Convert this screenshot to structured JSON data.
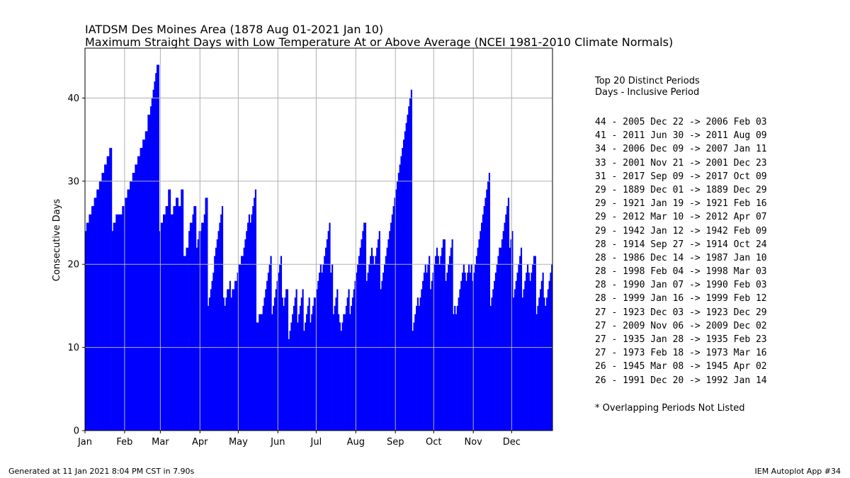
{
  "title_line1": "IATDSM Des Moines Area (1878 Aug 01-2021 Jan 10)",
  "title_line2": "Maximum Straight Days with Low Temperature At or Above Average (NCEI 1981-2010 Climate Normals)",
  "panel": {
    "heading1": "Top 20 Distinct Periods",
    "heading2": "Days - Inclusive Period",
    "periods": [
      "44 - 2005 Dec 22 -> 2006 Feb 03",
      "41 - 2011 Jun 30 -> 2011 Aug 09",
      "34 - 2006 Dec 09 -> 2007 Jan 11",
      "33 - 2001 Nov 21 -> 2001 Dec 23",
      "31 - 2017 Sep 09 -> 2017 Oct 09",
      "29 - 1889 Dec 01 -> 1889 Dec 29",
      "29 - 1921 Jan 19 -> 1921 Feb 16",
      "29 - 2012 Mar 10 -> 2012 Apr 07",
      "29 - 1942 Jan 12 -> 1942 Feb 09",
      "28 - 1914 Sep 27 -> 1914 Oct 24",
      "28 - 1986 Dec 14 -> 1987 Jan 10",
      "28 - 1998 Feb 04 -> 1998 Mar 03",
      "28 - 1990 Jan 07 -> 1990 Feb 03",
      "28 - 1999 Jan 16 -> 1999 Feb 12",
      "27 - 1923 Dec 03 -> 1923 Dec 29",
      "27 - 2009 Nov 06 -> 2009 Dec 02",
      "27 - 1935 Jan 28 -> 1935 Feb 23",
      "27 - 1973 Feb 18 -> 1973 Mar 16",
      "26 - 1945 Mar 08 -> 1945 Apr 02",
      "26 - 1991 Dec 20 -> 1992 Jan 14"
    ],
    "note": "* Overlapping Periods Not Listed"
  },
  "footer_left": "Generated at 11 Jan 2021 8:04 PM CST in 7.90s",
  "footer_right": "IEM Autoplot App #34",
  "chart_data": {
    "type": "bar",
    "ylabel": "Consecutive Days",
    "xlabel": "",
    "ylim": [
      0,
      46
    ],
    "xlim": [
      1,
      366
    ],
    "yticks": [
      0,
      10,
      20,
      30,
      40
    ],
    "grid": true,
    "bar_color": "#0000ff",
    "x_tick_labels": [
      "Jan",
      "Feb",
      "Mar",
      "Apr",
      "May",
      "Jun",
      "Jul",
      "Aug",
      "Sep",
      "Oct",
      "Nov",
      "Dec"
    ],
    "month_start_doy": [
      1,
      32,
      60,
      91,
      121,
      152,
      182,
      213,
      244,
      274,
      305,
      335
    ],
    "series_keypoints": [
      [
        1,
        24
      ],
      [
        2,
        25
      ],
      [
        4,
        26
      ],
      [
        6,
        27
      ],
      [
        8,
        28
      ],
      [
        10,
        29
      ],
      [
        12,
        30
      ],
      [
        14,
        31
      ],
      [
        16,
        32
      ],
      [
        18,
        33
      ],
      [
        20,
        34
      ],
      [
        21,
        34
      ],
      [
        22,
        24
      ],
      [
        23,
        25
      ],
      [
        24,
        25
      ],
      [
        25,
        26
      ],
      [
        26,
        26
      ],
      [
        28,
        26
      ],
      [
        30,
        27
      ],
      [
        32,
        28
      ],
      [
        34,
        29
      ],
      [
        36,
        30
      ],
      [
        38,
        31
      ],
      [
        40,
        32
      ],
      [
        42,
        33
      ],
      [
        44,
        34
      ],
      [
        46,
        35
      ],
      [
        48,
        36
      ],
      [
        50,
        38
      ],
      [
        52,
        39
      ],
      [
        53,
        40
      ],
      [
        54,
        41
      ],
      [
        55,
        42
      ],
      [
        56,
        43
      ],
      [
        57,
        44
      ],
      [
        58,
        44
      ],
      [
        59,
        24
      ],
      [
        60,
        25
      ],
      [
        62,
        26
      ],
      [
        64,
        27
      ],
      [
        66,
        29
      ],
      [
        67,
        29
      ],
      [
        68,
        26
      ],
      [
        70,
        27
      ],
      [
        72,
        28
      ],
      [
        74,
        27
      ],
      [
        76,
        29
      ],
      [
        77,
        29
      ],
      [
        78,
        21
      ],
      [
        80,
        22
      ],
      [
        82,
        24
      ],
      [
        83,
        25
      ],
      [
        85,
        26
      ],
      [
        86,
        27
      ],
      [
        87,
        27
      ],
      [
        88,
        22
      ],
      [
        89,
        23
      ],
      [
        90,
        24
      ],
      [
        92,
        25
      ],
      [
        94,
        26
      ],
      [
        95,
        28
      ],
      [
        96,
        28
      ],
      [
        97,
        15
      ],
      [
        98,
        16
      ],
      [
        99,
        17
      ],
      [
        100,
        18
      ],
      [
        101,
        19
      ],
      [
        102,
        21
      ],
      [
        103,
        22
      ],
      [
        104,
        23
      ],
      [
        105,
        24
      ],
      [
        106,
        25
      ],
      [
        107,
        26
      ],
      [
        108,
        27
      ],
      [
        109,
        16
      ],
      [
        110,
        15
      ],
      [
        111,
        16
      ],
      [
        112,
        17
      ],
      [
        114,
        18
      ],
      [
        115,
        16
      ],
      [
        116,
        17
      ],
      [
        118,
        18
      ],
      [
        120,
        19
      ],
      [
        121,
        20
      ],
      [
        123,
        21
      ],
      [
        125,
        22
      ],
      [
        126,
        23
      ],
      [
        127,
        24
      ],
      [
        128,
        25
      ],
      [
        129,
        26
      ],
      [
        130,
        25
      ],
      [
        131,
        26
      ],
      [
        132,
        27
      ],
      [
        133,
        28
      ],
      [
        134,
        29
      ],
      [
        135,
        13
      ],
      [
        136,
        13
      ],
      [
        137,
        14
      ],
      [
        139,
        14
      ],
      [
        140,
        15
      ],
      [
        141,
        16
      ],
      [
        142,
        17
      ],
      [
        143,
        18
      ],
      [
        144,
        19
      ],
      [
        145,
        20
      ],
      [
        146,
        21
      ],
      [
        147,
        14
      ],
      [
        148,
        15
      ],
      [
        149,
        16
      ],
      [
        150,
        17
      ],
      [
        151,
        18
      ],
      [
        152,
        19
      ],
      [
        153,
        20
      ],
      [
        154,
        21
      ],
      [
        155,
        16
      ],
      [
        156,
        15
      ],
      [
        157,
        16
      ],
      [
        158,
        17
      ],
      [
        159,
        17
      ],
      [
        160,
        11
      ],
      [
        161,
        12
      ],
      [
        162,
        13
      ],
      [
        163,
        14
      ],
      [
        164,
        15
      ],
      [
        165,
        16
      ],
      [
        166,
        17
      ],
      [
        167,
        13
      ],
      [
        168,
        14
      ],
      [
        169,
        15
      ],
      [
        170,
        16
      ],
      [
        171,
        17
      ],
      [
        172,
        12
      ],
      [
        173,
        13
      ],
      [
        174,
        14
      ],
      [
        175,
        15
      ],
      [
        176,
        16
      ],
      [
        177,
        13
      ],
      [
        178,
        14
      ],
      [
        179,
        15
      ],
      [
        180,
        16
      ],
      [
        181,
        16
      ],
      [
        182,
        17
      ],
      [
        183,
        18
      ],
      [
        184,
        19
      ],
      [
        185,
        20
      ],
      [
        186,
        19
      ],
      [
        187,
        20
      ],
      [
        188,
        21
      ],
      [
        189,
        22
      ],
      [
        190,
        23
      ],
      [
        191,
        24
      ],
      [
        192,
        25
      ],
      [
        193,
        19
      ],
      [
        194,
        20
      ],
      [
        195,
        14
      ],
      [
        196,
        15
      ],
      [
        197,
        16
      ],
      [
        198,
        17
      ],
      [
        199,
        14
      ],
      [
        200,
        13
      ],
      [
        201,
        12
      ],
      [
        202,
        13
      ],
      [
        203,
        14
      ],
      [
        204,
        14
      ],
      [
        205,
        15
      ],
      [
        206,
        16
      ],
      [
        207,
        17
      ],
      [
        208,
        14
      ],
      [
        209,
        15
      ],
      [
        210,
        16
      ],
      [
        211,
        17
      ],
      [
        212,
        18
      ],
      [
        213,
        19
      ],
      [
        214,
        20
      ],
      [
        215,
        21
      ],
      [
        216,
        22
      ],
      [
        217,
        23
      ],
      [
        218,
        24
      ],
      [
        219,
        25
      ],
      [
        220,
        25
      ],
      [
        221,
        18
      ],
      [
        222,
        19
      ],
      [
        223,
        20
      ],
      [
        224,
        21
      ],
      [
        225,
        22
      ],
      [
        226,
        21
      ],
      [
        227,
        20
      ],
      [
        228,
        21
      ],
      [
        229,
        22
      ],
      [
        230,
        23
      ],
      [
        231,
        24
      ],
      [
        232,
        17
      ],
      [
        233,
        18
      ],
      [
        234,
        19
      ],
      [
        235,
        20
      ],
      [
        236,
        21
      ],
      [
        237,
        22
      ],
      [
        238,
        23
      ],
      [
        239,
        24
      ],
      [
        240,
        25
      ],
      [
        241,
        26
      ],
      [
        242,
        27
      ],
      [
        243,
        28
      ],
      [
        244,
        29
      ],
      [
        245,
        30
      ],
      [
        246,
        31
      ],
      [
        247,
        32
      ],
      [
        248,
        33
      ],
      [
        249,
        34
      ],
      [
        250,
        35
      ],
      [
        251,
        36
      ],
      [
        252,
        37
      ],
      [
        253,
        38
      ],
      [
        254,
        39
      ],
      [
        255,
        40
      ],
      [
        256,
        41
      ],
      [
        257,
        12
      ],
      [
        258,
        13
      ],
      [
        259,
        14
      ],
      [
        260,
        15
      ],
      [
        261,
        16
      ],
      [
        262,
        15
      ],
      [
        263,
        16
      ],
      [
        264,
        17
      ],
      [
        265,
        18
      ],
      [
        266,
        19
      ],
      [
        267,
        20
      ],
      [
        268,
        19
      ],
      [
        269,
        20
      ],
      [
        270,
        21
      ],
      [
        271,
        17
      ],
      [
        272,
        18
      ],
      [
        273,
        19
      ],
      [
        274,
        20
      ],
      [
        275,
        21
      ],
      [
        276,
        22
      ],
      [
        277,
        21
      ],
      [
        278,
        20
      ],
      [
        279,
        21
      ],
      [
        280,
        22
      ],
      [
        281,
        23
      ],
      [
        282,
        23
      ],
      [
        283,
        18
      ],
      [
        284,
        19
      ],
      [
        285,
        20
      ],
      [
        286,
        21
      ],
      [
        287,
        22
      ],
      [
        288,
        23
      ],
      [
        289,
        14
      ],
      [
        290,
        15
      ],
      [
        291,
        14
      ],
      [
        292,
        15
      ],
      [
        293,
        16
      ],
      [
        294,
        17
      ],
      [
        295,
        18
      ],
      [
        296,
        19
      ],
      [
        297,
        20
      ],
      [
        298,
        19
      ],
      [
        299,
        18
      ],
      [
        300,
        19
      ],
      [
        301,
        20
      ],
      [
        302,
        19
      ],
      [
        303,
        20
      ],
      [
        304,
        18
      ],
      [
        305,
        19
      ],
      [
        306,
        20
      ],
      [
        307,
        21
      ],
      [
        308,
        22
      ],
      [
        309,
        23
      ],
      [
        310,
        24
      ],
      [
        311,
        25
      ],
      [
        312,
        26
      ],
      [
        313,
        27
      ],
      [
        314,
        28
      ],
      [
        315,
        29
      ],
      [
        316,
        30
      ],
      [
        317,
        31
      ],
      [
        318,
        15
      ],
      [
        319,
        16
      ],
      [
        320,
        17
      ],
      [
        321,
        18
      ],
      [
        322,
        19
      ],
      [
        323,
        20
      ],
      [
        324,
        21
      ],
      [
        325,
        22
      ],
      [
        326,
        22
      ],
      [
        327,
        23
      ],
      [
        328,
        24
      ],
      [
        329,
        25
      ],
      [
        330,
        26
      ],
      [
        331,
        27
      ],
      [
        332,
        28
      ],
      [
        333,
        22
      ],
      [
        334,
        23
      ],
      [
        335,
        24
      ],
      [
        336,
        16
      ],
      [
        337,
        17
      ],
      [
        338,
        18
      ],
      [
        339,
        19
      ],
      [
        340,
        20
      ],
      [
        341,
        21
      ],
      [
        342,
        22
      ],
      [
        343,
        16
      ],
      [
        344,
        17
      ],
      [
        345,
        18
      ],
      [
        346,
        19
      ],
      [
        347,
        20
      ],
      [
        348,
        19
      ],
      [
        349,
        18
      ],
      [
        350,
        19
      ],
      [
        351,
        20
      ],
      [
        352,
        21
      ],
      [
        353,
        21
      ],
      [
        354,
        14
      ],
      [
        355,
        15
      ],
      [
        356,
        16
      ],
      [
        357,
        17
      ],
      [
        358,
        18
      ],
      [
        359,
        19
      ],
      [
        360,
        16
      ],
      [
        361,
        15
      ],
      [
        362,
        16
      ],
      [
        363,
        17
      ],
      [
        364,
        18
      ],
      [
        365,
        19
      ],
      [
        366,
        20
      ]
    ]
  }
}
